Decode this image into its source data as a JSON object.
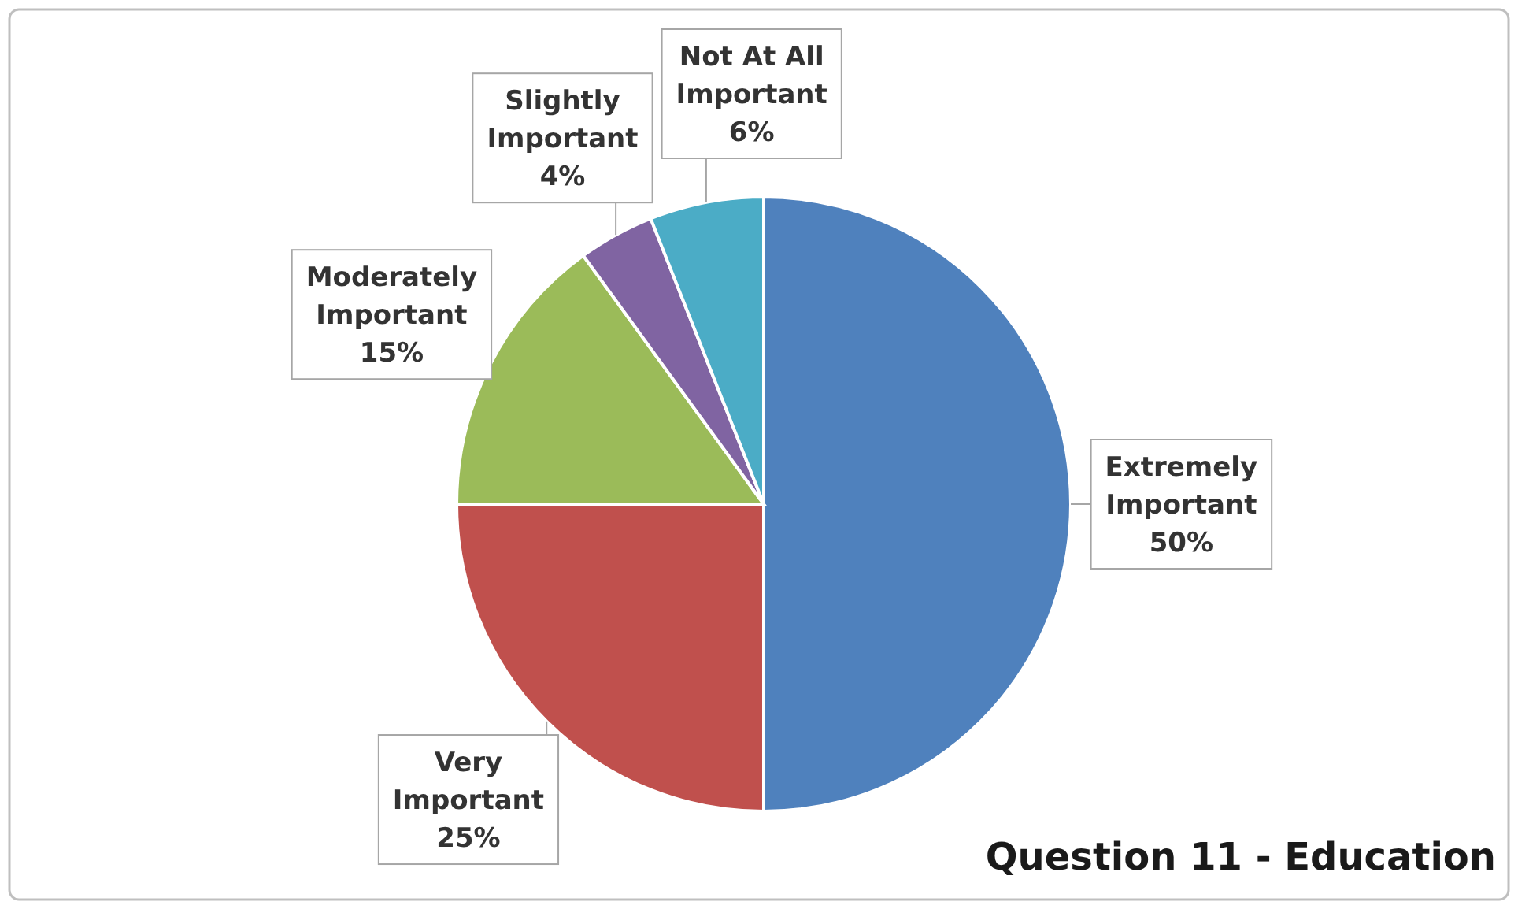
{
  "chart_data": {
    "type": "pie",
    "title": "Question 11 - Education",
    "categories": [
      "Extremely Important",
      "Very Important",
      "Moderately Important",
      "Slightly Important",
      "Not At All Important"
    ],
    "values": [
      50,
      25,
      15,
      4,
      6
    ],
    "value_labels": [
      "50%",
      "25%",
      "15%",
      "4%",
      "6%"
    ],
    "colors": [
      "#4f81bd",
      "#c0504d",
      "#9bbb59",
      "#8064a2",
      "#4bacc6"
    ],
    "legend": false
  }
}
